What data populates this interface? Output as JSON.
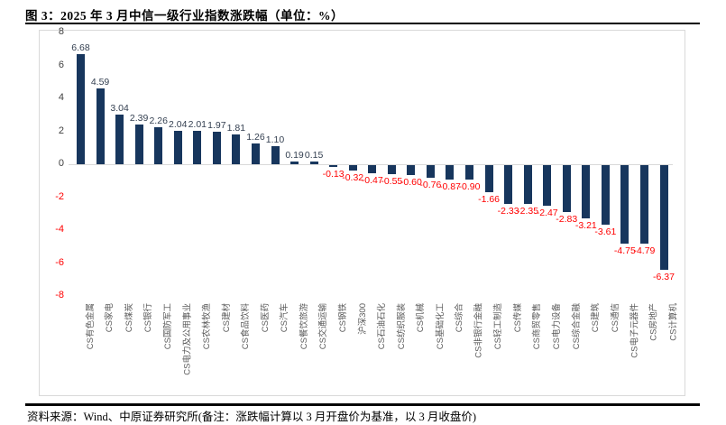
{
  "header": {
    "title": "图 3：2025 年 3 月中信一级行业指数涨跌幅（单位：%）"
  },
  "footer": {
    "source": "资料来源：Wind、中原证券研究所(备注：涨跌幅计算以 3 月开盘价为基准，以 3 月收盘价)"
  },
  "colors": {
    "bar": "#17365d",
    "positive_label": "#333f50",
    "negative_label": "#ff0000",
    "tick_positive": "#404040",
    "tick_negative": "#ff0000",
    "category_label": "#595959",
    "axis_line": "#d9d9d9"
  },
  "chart_data": {
    "type": "bar",
    "title": "2025 年 3 月中信一级行业指数涨跌幅（单位：%）",
    "xlabel": "",
    "ylabel": "",
    "ylim": [
      -8,
      8
    ],
    "yticks": [
      8,
      6,
      4,
      2,
      0,
      -2,
      -4,
      -6,
      -8
    ],
    "grid": false,
    "legend_position": "none",
    "value_label_decimals": 2,
    "categories": [
      "CS有色金属",
      "CS家电",
      "CS煤炭",
      "CS银行",
      "CS国防军工",
      "CS电力及公用事业",
      "CS农林牧渔",
      "CS建材",
      "CS食品饮料",
      "CS医药",
      "CS汽车",
      "CS餐饮旅游",
      "CS交通运输",
      "CS钢铁",
      "沪深300",
      "CS石油石化",
      "CS纺织服装",
      "CS机械",
      "CS基础化工",
      "CS综合",
      "CS非银行金融",
      "CS轻工制造",
      "CS传媒",
      "CS商贸零售",
      "CS电力设备",
      "CS综合金融",
      "CS建筑",
      "CS通信",
      "CS电子元器件",
      "CS房地产",
      "CS计算机"
    ],
    "values": [
      6.68,
      4.59,
      3.04,
      2.39,
      2.26,
      2.04,
      2.01,
      1.97,
      1.81,
      1.26,
      1.1,
      0.19,
      0.15,
      -0.13,
      -0.32,
      -0.47,
      -0.55,
      -0.6,
      -0.76,
      -0.87,
      -0.9,
      -1.66,
      -2.33,
      -2.35,
      -2.47,
      -2.83,
      -3.21,
      -3.61,
      -4.75,
      -4.79,
      -6.37
    ]
  }
}
